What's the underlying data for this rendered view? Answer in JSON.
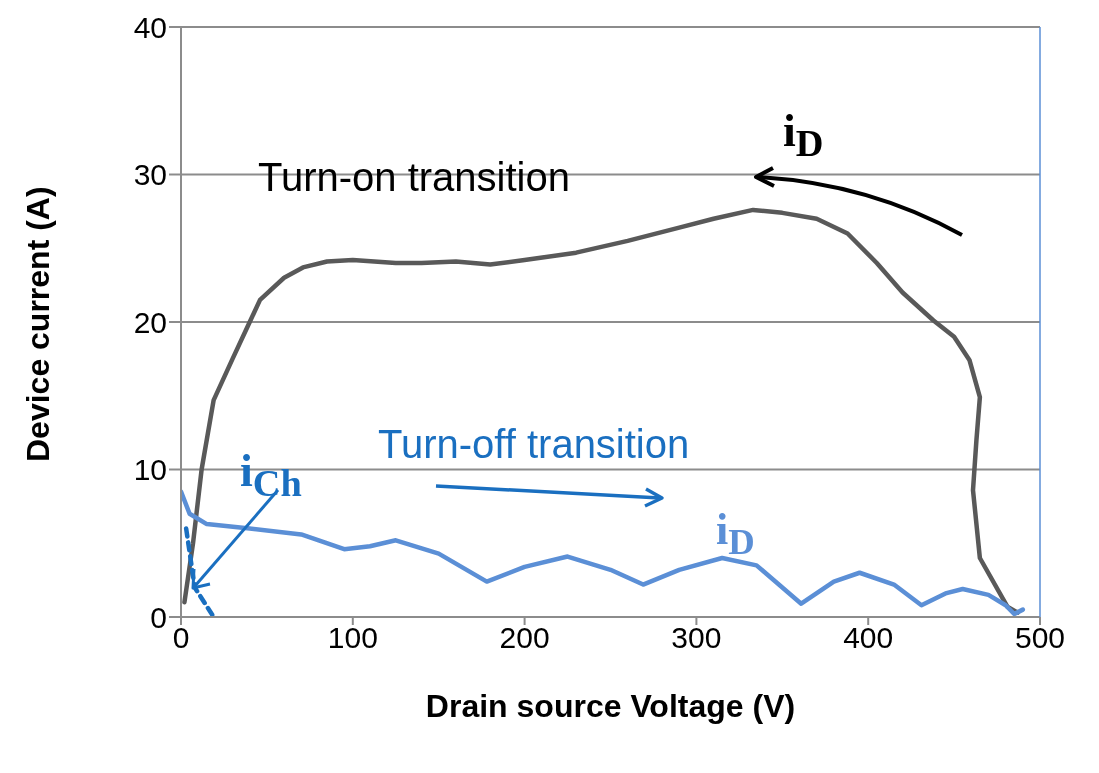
{
  "chart_data": {
    "type": "line",
    "xlabel": "Drain source Voltage (V)",
    "ylabel": "Device current (A)",
    "xlim": [
      0,
      500
    ],
    "xticks": [
      0,
      100,
      200,
      300,
      400,
      500
    ],
    "ylim": [
      0,
      40
    ],
    "yticks": [
      0,
      10,
      20,
      30,
      40
    ],
    "grid": "y",
    "legend": false,
    "marker": "none",
    "annotations": [
      "Turn-on transition",
      "Turn-off transition"
    ],
    "series": [
      {
        "name": "i$_{D}$",
        "color": "#595959",
        "x": [
          487,
          481,
          465,
          461,
          463,
          465,
          459,
          450,
          438,
          420,
          405,
          388,
          370,
          350,
          333,
          310,
          290,
          260,
          230,
          200,
          180,
          160,
          140,
          125,
          100,
          85,
          71,
          60,
          46,
          40,
          30,
          19,
          12,
          7,
          2
        ],
        "values": [
          0.3,
          0.7,
          4,
          8.6,
          12,
          14.9,
          17.4,
          19,
          20.1,
          22,
          24,
          26,
          27,
          27.4,
          27.6,
          27,
          26.4,
          25.5,
          24.7,
          24.2,
          23.9,
          24.1,
          24,
          24,
          24.2,
          24.1,
          23.7,
          23,
          21.5,
          20,
          17.5,
          14.7,
          10,
          5,
          1
        ]
      },
      {
        "name": "i$_{D}$",
        "color": "#5b8fd6",
        "x": [
          0,
          5,
          15,
          40,
          70,
          95,
          110,
          125,
          150,
          178,
          200,
          225,
          250,
          269,
          290,
          315,
          335,
          361,
          380,
          395,
          415,
          431,
          445,
          455,
          470,
          480,
          485,
          490
        ],
        "values": [
          8.5,
          7,
          6.3,
          6,
          5.6,
          4.6,
          4.8,
          5.2,
          4.3,
          2.4,
          3.4,
          4.1,
          3.2,
          2.2,
          3.2,
          4,
          3.5,
          0.9,
          2.4,
          3,
          2.2,
          0.8,
          1.6,
          1.9,
          1.5,
          0.8,
          0.2,
          0.5
        ]
      },
      {
        "name": "i$_{Ch}$",
        "color": "#1a6fc0",
        "line_style": "dashed",
        "x": [
          3,
          8,
          19
        ],
        "values": [
          6,
          2,
          0
        ]
      }
    ]
  }
}
